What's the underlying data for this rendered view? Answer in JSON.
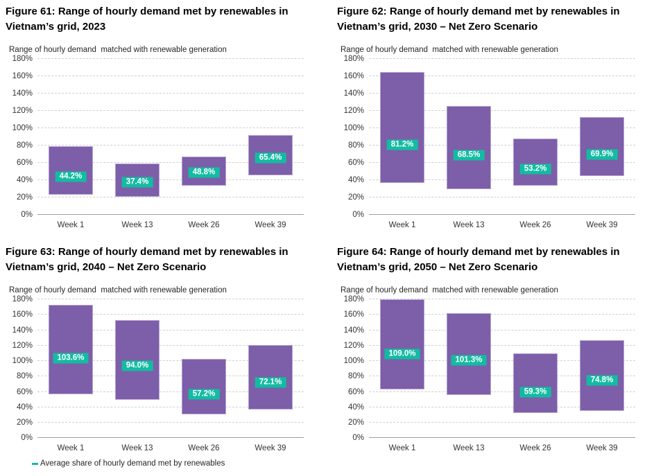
{
  "colors": {
    "bar_fill": "#7D5EA9",
    "bar_border": "#B4A3D2",
    "average_marker": "#12BCA2",
    "grid_line": "#CFCFCF",
    "axis_line": "#9E9E9E",
    "title_text": "#000000",
    "tick_text": "#333333"
  },
  "legend": {
    "label": "Average share of hourly demand met by renewables"
  },
  "chart_data": [
    {
      "type": "bar",
      "subtype": "floating-range-bar",
      "title": "Figure 61: Range of hourly demand met by renewables in Vietnam’s grid, 2023",
      "subtitle": "Range of hourly demand  matched with renewable generation",
      "categories": [
        "Week 1",
        "Week 13",
        "Week 26",
        "Week 39"
      ],
      "series": [
        {
          "name": "Range low (%)",
          "values": [
            23,
            21,
            34,
            46
          ]
        },
        {
          "name": "Range high (%)",
          "values": [
            79,
            59,
            67,
            92
          ]
        },
        {
          "name": "Average share of hourly demand met by renewables (%)",
          "values": [
            44.2,
            37.4,
            48.8,
            65.4
          ]
        }
      ],
      "avg_labels": [
        "44.2%",
        "37.4%",
        "48.8%",
        "65.4%"
      ],
      "ylim": [
        0,
        180
      ],
      "ytick_step": 20,
      "yticks": [
        "0%",
        "20%",
        "40%",
        "60%",
        "80%",
        "100%",
        "120%",
        "140%",
        "160%",
        "180%"
      ],
      "grid": true,
      "xlabel": "",
      "ylabel": ""
    },
    {
      "type": "bar",
      "subtype": "floating-range-bar",
      "title": "Figure 62: Range of hourly demand met by renewables in Vietnam’s grid, 2030 – Net Zero Scenario",
      "subtitle": "Range of hourly demand  matched with renewable generation",
      "categories": [
        "Week 1",
        "Week 13",
        "Week 26",
        "Week 39"
      ],
      "series": [
        {
          "name": "Range low (%)",
          "values": [
            37,
            30,
            34,
            45
          ]
        },
        {
          "name": "Range high (%)",
          "values": [
            165,
            126,
            88,
            113
          ]
        },
        {
          "name": "Average share of hourly demand met by renewables (%)",
          "values": [
            81.2,
            68.5,
            53.2,
            69.9
          ]
        }
      ],
      "avg_labels": [
        "81.2%",
        "68.5%",
        "53.2%",
        "69.9%"
      ],
      "ylim": [
        0,
        180
      ],
      "ytick_step": 20,
      "yticks": [
        "0%",
        "20%",
        "40%",
        "60%",
        "80%",
        "100%",
        "120%",
        "140%",
        "160%",
        "180%"
      ],
      "grid": true,
      "xlabel": "",
      "ylabel": ""
    },
    {
      "type": "bar",
      "subtype": "floating-range-bar",
      "title": "Figure 63: Range of hourly demand met by renewables in Vietnam’s grid, 2040 – Net Zero Scenario",
      "subtitle": "Range of hourly demand  matched with renewable generation",
      "categories": [
        "Week 1",
        "Week 13",
        "Week 26",
        "Week 39"
      ],
      "series": [
        {
          "name": "Range low (%)",
          "values": [
            57,
            50,
            31,
            37
          ]
        },
        {
          "name": "Range high (%)",
          "values": [
            173,
            153,
            103,
            121
          ]
        },
        {
          "name": "Average share of hourly demand met by renewables (%)",
          "values": [
            103.6,
            94.0,
            57.2,
            72.1
          ]
        }
      ],
      "avg_labels": [
        "103.6%",
        "94.0%",
        "57.2%",
        "72.1%"
      ],
      "ylim": [
        0,
        180
      ],
      "ytick_step": 20,
      "yticks": [
        "0%",
        "20%",
        "40%",
        "60%",
        "80%",
        "100%",
        "120%",
        "140%",
        "160%",
        "180%"
      ],
      "grid": true,
      "legend": {
        "label": "Average share of hourly demand met by renewables",
        "position": "bottom"
      },
      "xlabel": "",
      "ylabel": ""
    },
    {
      "type": "bar",
      "subtype": "floating-range-bar",
      "title": "Figure 64: Range of hourly demand met by renewables in Vietnam’s grid, 2050 – Net Zero Scenario",
      "subtitle": "Range of hourly demand  matched with renewable generation",
      "categories": [
        "Week 1",
        "Week 13",
        "Week 26",
        "Week 39"
      ],
      "series": [
        {
          "name": "Range low (%)",
          "values": [
            63,
            56,
            33,
            35
          ]
        },
        {
          "name": "Range high (%)",
          "values": [
            180,
            162,
            110,
            127
          ]
        },
        {
          "name": "Average share of hourly demand met by renewables (%)",
          "values": [
            109.0,
            101.3,
            59.3,
            74.8
          ]
        }
      ],
      "avg_labels": [
        "109.0%",
        "101.3%",
        "59.3%",
        "74.8%"
      ],
      "ylim": [
        0,
        180
      ],
      "ytick_step": 20,
      "yticks": [
        "0%",
        "20%",
        "40%",
        "60%",
        "80%",
        "100%",
        "120%",
        "140%",
        "160%",
        "180%"
      ],
      "grid": true,
      "xlabel": "",
      "ylabel": ""
    }
  ]
}
